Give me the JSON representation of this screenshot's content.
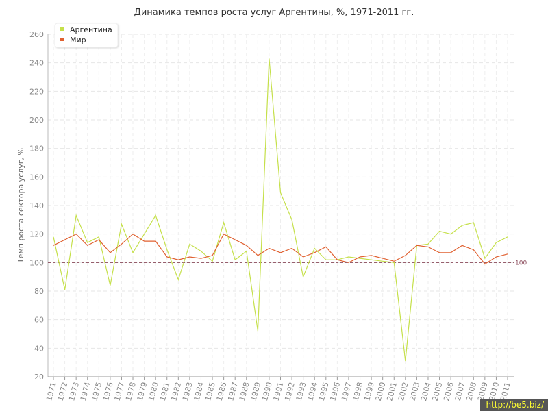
{
  "chart_data": {
    "type": "line",
    "title": "Динамика темпов роста услуг Аргентины, %, 1971-2011 гг.",
    "ylabel": "Темп роста сектора услуг, %",
    "xlabel": "",
    "ylim": [
      20,
      260
    ],
    "yticks": [
      20,
      40,
      60,
      80,
      100,
      120,
      140,
      160,
      180,
      200,
      220,
      240,
      260
    ],
    "categories": [
      "1971",
      "1972",
      "1973",
      "1974",
      "1975",
      "1976",
      "1977",
      "1978",
      "1979",
      "1980",
      "1981",
      "1982",
      "1983",
      "1984",
      "1985",
      "1986",
      "1987",
      "1988",
      "1989",
      "1990",
      "1991",
      "1992",
      "1993",
      "1994",
      "1995",
      "1996",
      "1997",
      "1998",
      "1999",
      "2000",
      "2001",
      "2002",
      "2003",
      "2004",
      "2005",
      "2006",
      "2007",
      "2008",
      "2009",
      "2010",
      "2011"
    ],
    "series": [
      {
        "name": "Аргентина",
        "color": "#c5e04a",
        "values": [
          118,
          81,
          133,
          114,
          118,
          84,
          127,
          107,
          120,
          133,
          109,
          88,
          113,
          108,
          101,
          128,
          102,
          108,
          52,
          243,
          149,
          130,
          90,
          110,
          102,
          102,
          104,
          103,
          102,
          101,
          100,
          31,
          112,
          113,
          122,
          120,
          126,
          128,
          103,
          114,
          118
        ]
      },
      {
        "name": "Мир",
        "color": "#e06030",
        "values": [
          112,
          116,
          120,
          112,
          116,
          107,
          113,
          120,
          115,
          115,
          104,
          102,
          104,
          103,
          105,
          120,
          116,
          112,
          105,
          110,
          107,
          110,
          104,
          107,
          111,
          102,
          100,
          104,
          105,
          103,
          101,
          105,
          112,
          111,
          107,
          107,
          112,
          109,
          99,
          104,
          106
        ]
      }
    ],
    "reference_line": {
      "value": 100,
      "label": "100",
      "color": "#8a4a5a"
    },
    "grid": true,
    "legend_position": "top-left"
  },
  "watermark": "http://be5.biz/"
}
